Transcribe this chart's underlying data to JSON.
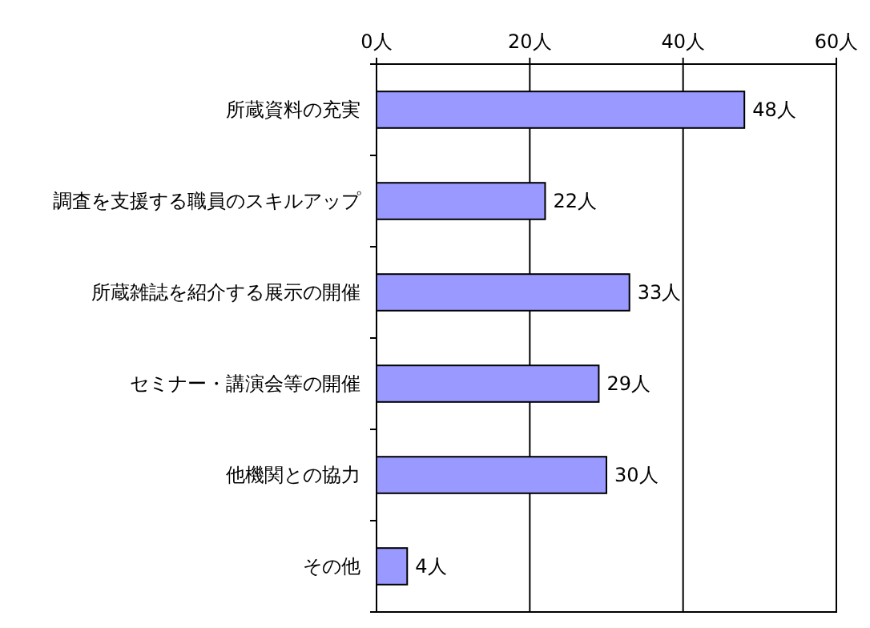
{
  "chart_data": {
    "type": "bar",
    "orientation": "horizontal",
    "categories": [
      "所蔵資料の充実",
      "調査を支援する職員のスキルアップ",
      "所蔵雑誌を紹介する展示の開催",
      "セミナー・講演会等の開催",
      "他機関との協力",
      "その他"
    ],
    "values": [
      48,
      22,
      33,
      29,
      30,
      4
    ],
    "value_labels": [
      "48人",
      "22人",
      "33人",
      "29人",
      "30人",
      "4人"
    ],
    "color": "#9999ff",
    "xlim": [
      0,
      60
    ],
    "xticks": [
      {
        "value": 0,
        "label": "0人"
      },
      {
        "value": 20,
        "label": "20人"
      },
      {
        "value": 40,
        "label": "40人"
      },
      {
        "value": 60,
        "label": "60人"
      }
    ],
    "grid": "x"
  }
}
